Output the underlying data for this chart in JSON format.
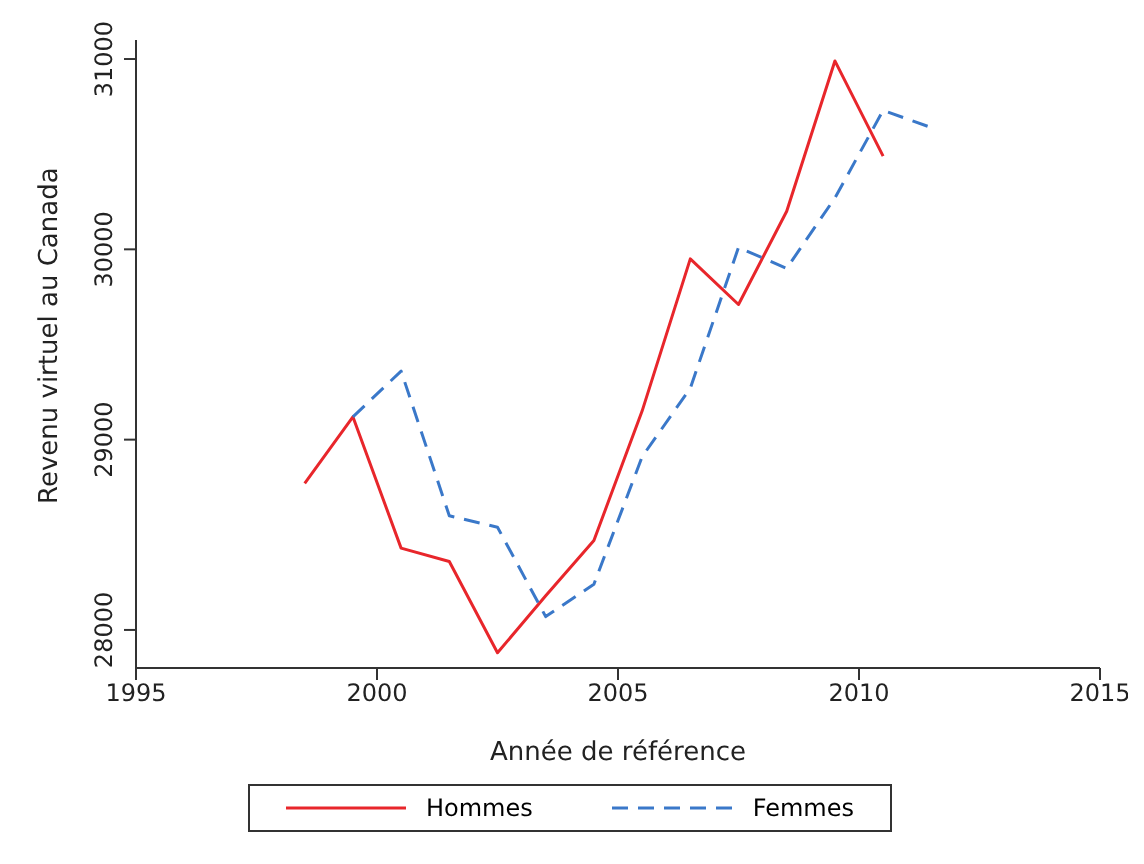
{
  "chart_data": {
    "type": "line",
    "xlabel": "Année de référence",
    "ylabel": "Revenu virtuel au Canada",
    "xlim": [
      1995,
      2015
    ],
    "xticks": [
      1995,
      2000,
      2005,
      2010,
      2015
    ],
    "ylim": [
      27800,
      31100
    ],
    "yticks": [
      28000,
      29000,
      30000,
      31000
    ],
    "grid": false,
    "legend": "bottom",
    "marker": "none",
    "series": [
      {
        "name": "Hommes",
        "color": "#e8262b",
        "line_style": "solid",
        "x": [
          1998.5,
          1999.5,
          2000.5,
          2001.5,
          2002.5,
          2003.5,
          2004.5,
          2005.5,
          2006.5,
          2007.5,
          2008.5,
          2009.5,
          2010.5
        ],
        "values": [
          28770,
          29120,
          28430,
          28360,
          27880,
          28180,
          28470,
          29150,
          29950,
          29710,
          30200,
          30990,
          30490
        ]
      },
      {
        "name": "Femmes",
        "color": "#3a78c9",
        "line_style": "dashed",
        "x": [
          1999.5,
          2000.5,
          2001.5,
          2002.5,
          2003.5,
          2004.5,
          2005.5,
          2006.5,
          2007.5,
          2008.5,
          2009.5,
          2010.5,
          2011.5
        ],
        "values": [
          29120,
          29360,
          28600,
          28540,
          28070,
          28240,
          28910,
          29270,
          30010,
          29900,
          30270,
          30730,
          30640
        ]
      }
    ]
  }
}
